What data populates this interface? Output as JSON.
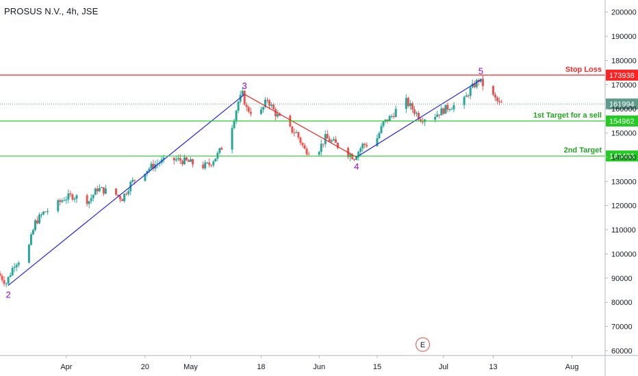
{
  "header": {
    "title": "PROSUS N.V., 4h, JSE"
  },
  "colors": {
    "up": "#26a69a",
    "down": "#ef5350",
    "stop": "#ff2222",
    "target": "#22cc22",
    "target_label": "#21a321",
    "wave_up": "#2222ee",
    "wave_down": "#ee2222",
    "wave_label": "#9900cc",
    "last": "#5e9b8a",
    "watermark": "#e56a6a"
  },
  "event_badge": "E",
  "chart_data": {
    "type": "candlestick",
    "title": "PROSUS N.V., 4h, JSE",
    "ylim": [
      58000,
      205000
    ],
    "yticks": [
      60000,
      70000,
      80000,
      90000,
      100000,
      110000,
      120000,
      130000,
      140000,
      150000,
      160000,
      170000,
      180000,
      190000,
      200000
    ],
    "ytick_labels": [
      "60000",
      "70000",
      "80000",
      "90000",
      "100000",
      "110000",
      "120000",
      "130000",
      "140000",
      "150000",
      "160000",
      "170000",
      "180000",
      "190000",
      "200000"
    ],
    "xlim": [
      "2020-03-16",
      "2020-08-09"
    ],
    "xticks": [
      {
        "date": "2020-04-01",
        "label": "Apr"
      },
      {
        "date": "2020-04-20",
        "label": "20"
      },
      {
        "date": "2020-05-01",
        "label": "May"
      },
      {
        "date": "2020-05-18",
        "label": "18"
      },
      {
        "date": "2020-06-01",
        "label": "Jun"
      },
      {
        "date": "2020-06-15",
        "label": "15"
      },
      {
        "date": "2020-07-01",
        "label": "Jul"
      },
      {
        "date": "2020-07-13",
        "label": "13"
      },
      {
        "date": "2020-08-01",
        "label": "Aug"
      }
    ],
    "levels": [
      {
        "name": "Stop Loss",
        "value": 173938,
        "label": "173938",
        "kind": "stop"
      },
      {
        "name": "1st Target for a sell",
        "value": 154962,
        "label": "154962",
        "kind": "target"
      },
      {
        "name": "2nd Target",
        "value": 140493,
        "label": "140493",
        "kind": "target"
      }
    ],
    "last_price": {
      "value": 161994,
      "label": "161994"
    },
    "waves": [
      {
        "label": "2",
        "date": "2020-03-18",
        "value": 87000
      },
      {
        "label": "3",
        "date": "2020-05-14",
        "value": 166000
      },
      {
        "label": "4",
        "date": "2020-06-10",
        "value": 140000
      },
      {
        "label": "5",
        "date": "2020-07-10",
        "value": 172000
      }
    ],
    "event": {
      "date": "2020-06-26",
      "label": "E"
    },
    "path": [
      [
        "2020-03-16",
        92000
      ],
      [
        "2020-03-18",
        88000
      ],
      [
        "2020-03-20",
        96000
      ],
      [
        "2020-03-23",
        100000
      ],
      [
        "2020-03-25",
        113000
      ],
      [
        "2020-03-27",
        117000
      ],
      [
        "2020-03-30",
        120000
      ],
      [
        "2020-04-01",
        123000
      ],
      [
        "2020-04-03",
        124000
      ],
      [
        "2020-04-07",
        122000
      ],
      [
        "2020-04-09",
        127000
      ],
      [
        "2020-04-13",
        125000
      ],
      [
        "2020-04-15",
        123000
      ],
      [
        "2020-04-17",
        129000
      ],
      [
        "2020-04-20",
        134000
      ],
      [
        "2020-04-22",
        136000
      ],
      [
        "2020-04-24",
        138000
      ],
      [
        "2020-04-28",
        139000
      ],
      [
        "2020-05-01",
        138000
      ],
      [
        "2020-05-04",
        136000
      ],
      [
        "2020-05-06",
        137000
      ],
      [
        "2020-05-08",
        141000
      ],
      [
        "2020-05-11",
        150000
      ],
      [
        "2020-05-13",
        163000
      ],
      [
        "2020-05-14",
        166000
      ],
      [
        "2020-05-15",
        160000
      ],
      [
        "2020-05-18",
        157000
      ],
      [
        "2020-05-20",
        164000
      ],
      [
        "2020-05-22",
        158000
      ],
      [
        "2020-05-25",
        152000
      ],
      [
        "2020-05-27",
        150000
      ],
      [
        "2020-05-29",
        143000
      ],
      [
        "2020-06-01",
        142000
      ],
      [
        "2020-06-03",
        148000
      ],
      [
        "2020-06-05",
        146000
      ],
      [
        "2020-06-08",
        142000
      ],
      [
        "2020-06-10",
        140000
      ],
      [
        "2020-06-12",
        145000
      ],
      [
        "2020-06-15",
        146000
      ],
      [
        "2020-06-17",
        154000
      ],
      [
        "2020-06-19",
        157000
      ],
      [
        "2020-06-22",
        164000
      ],
      [
        "2020-06-24",
        160000
      ],
      [
        "2020-06-26",
        156000
      ],
      [
        "2020-06-29",
        157000
      ],
      [
        "2020-07-01",
        159000
      ],
      [
        "2020-07-03",
        161000
      ],
      [
        "2020-07-06",
        162000
      ],
      [
        "2020-07-08",
        168000
      ],
      [
        "2020-07-10",
        172000
      ],
      [
        "2020-07-13",
        166000
      ],
      [
        "2020-07-15",
        162000
      ]
    ]
  }
}
